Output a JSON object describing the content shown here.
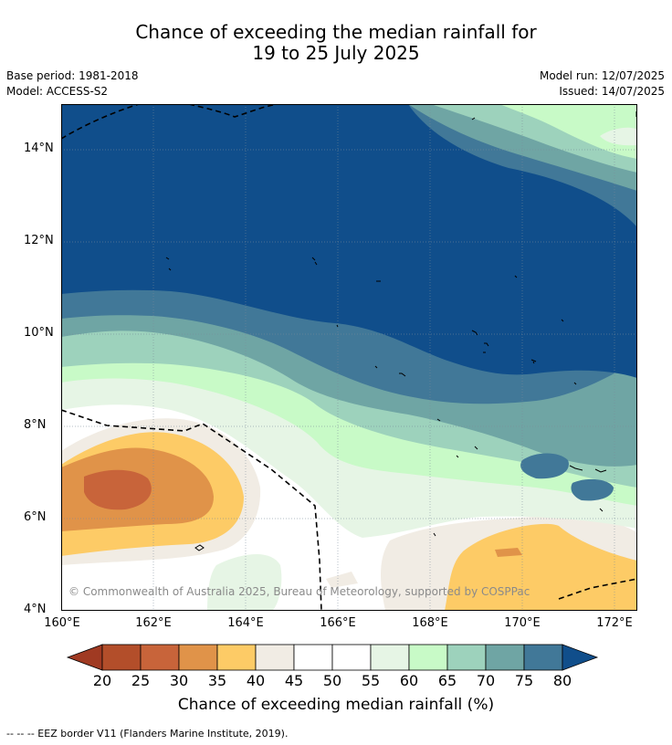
{
  "header": {
    "title_line1": "Chance of exceeding the median rainfall for",
    "title_line2": "19 to 25 July 2025",
    "base_period": "Base period: 1981-2018",
    "model": "Model: ACCESS-S2",
    "model_run": "Model run: 12/07/2025",
    "issued": "Issued: 14/07/2025"
  },
  "map": {
    "lat_labels": [
      "14°N",
      "12°N",
      "10°N",
      "8°N",
      "6°N",
      "4°N"
    ],
    "lon_labels": [
      "160°E",
      "162°E",
      "164°E",
      "166°E",
      "168°E",
      "170°E",
      "172°E"
    ],
    "copyright": "© Commonwealth of Australia 2025, Bureau of Meteorology, supported by COSPPac",
    "footnote": "--  --  -- EEZ border V11 (Flanders Marine Institute, 2019)."
  },
  "colorbar": {
    "ticks": [
      "20",
      "25",
      "30",
      "35",
      "40",
      "45",
      "50",
      "55",
      "60",
      "65",
      "70",
      "75",
      "80"
    ],
    "colors": [
      "#a03a22",
      "#b34e2a",
      "#c8643a",
      "#e09349",
      "#fdcb66",
      "#f1ece4",
      "#ffffff",
      "#ffffff",
      "#e6f5e5",
      "#c8fac7",
      "#9dd2bc",
      "#6fa5a4",
      "#417898",
      "#104e8b"
    ],
    "title": "Chance of exceeding median rainfall (%)"
  }
}
